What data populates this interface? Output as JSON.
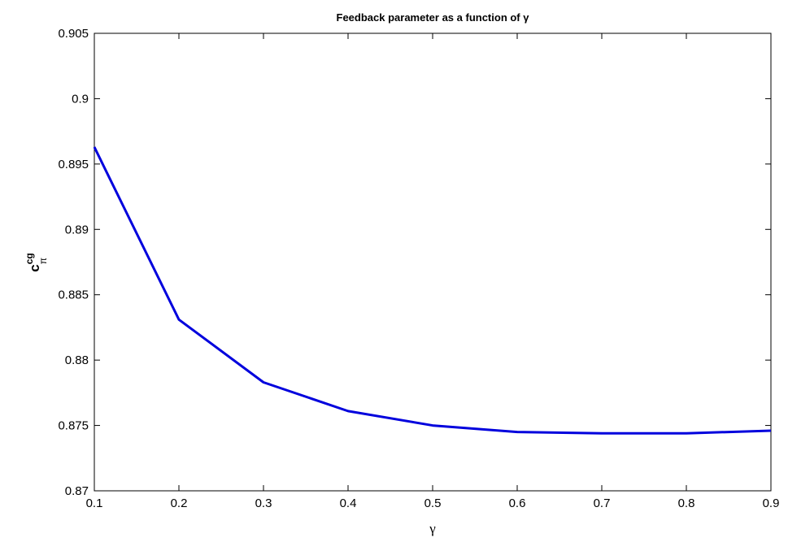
{
  "chart_data": {
    "type": "line",
    "title": "Feedback parameter as a function of γ",
    "xlabel": "γ",
    "ylabel": {
      "base": "c",
      "superscript": "cg",
      "subscript": "π"
    },
    "xlim": [
      0.1,
      0.9
    ],
    "ylim": [
      0.87,
      0.905
    ],
    "xticks": [
      "0.1",
      "0.2",
      "0.3",
      "0.4",
      "0.5",
      "0.6",
      "0.7",
      "0.8",
      "0.9"
    ],
    "yticks": [
      "0.87",
      "0.875",
      "0.88",
      "0.885",
      "0.89",
      "0.895",
      "0.9",
      "0.905"
    ],
    "grid": false,
    "series": [
      {
        "color": "#0000dd",
        "x": [
          0.1,
          0.2,
          0.3,
          0.4,
          0.5,
          0.6,
          0.7,
          0.8,
          0.9
        ],
        "y": [
          0.8963,
          0.8831,
          0.8783,
          0.8761,
          0.875,
          0.8745,
          0.8744,
          0.8744,
          0.8746
        ]
      }
    ]
  }
}
